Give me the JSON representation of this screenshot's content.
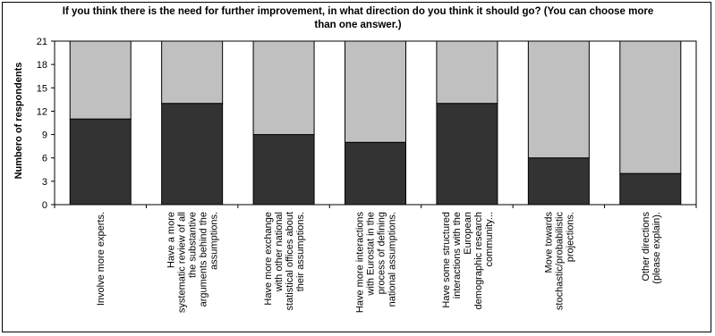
{
  "chart_data": {
    "type": "bar",
    "title": "If you think there is the need for further improvement, in what direction do you think it should go? (You can choose more than one answer.)",
    "ylabel": "Numbero of respondents",
    "xlabel": "",
    "ylim": [
      0,
      21
    ],
    "yticks": [
      0,
      3,
      6,
      9,
      12,
      15,
      18,
      21
    ],
    "stacked": true,
    "grid": false,
    "categories": [
      "Involve more experts.",
      "Have a more systematic review of all the substantive arguments behind the assumptions.",
      "Have more exchange with other national statistical offices about their assumptions.",
      "Have more interactions with Eurostat in the process of defining national assumptions.",
      "Have some structured interactions with the European demographic research community...",
      "Move towards stochastic/probabilistic projections.",
      "Other directions (please explain)."
    ],
    "category_lines": [
      [
        "Involve more experts."
      ],
      [
        "Have a more",
        "systematic review of all",
        "the substantive",
        "arguments behind the",
        "assumptions."
      ],
      [
        "Have more exchange",
        "with other national",
        "statistical offices about",
        "their assumptions."
      ],
      [
        "Have more interactions",
        "with Eurostat in the",
        "process of defining",
        "national assumptions."
      ],
      [
        "Have some structured",
        "interactions with the",
        "European",
        "demographic research",
        "community..."
      ],
      [
        "Move towards",
        "stochastic/probabilistic",
        "projections."
      ],
      [
        "Other directions",
        "(please explain)."
      ]
    ],
    "series": [
      {
        "values": [
          11,
          13,
          9,
          8,
          13,
          6,
          4
        ],
        "color": "#333333"
      },
      {
        "values": [
          10,
          8,
          12,
          13,
          8,
          15,
          17
        ],
        "color": "#c0c0c0"
      }
    ]
  }
}
